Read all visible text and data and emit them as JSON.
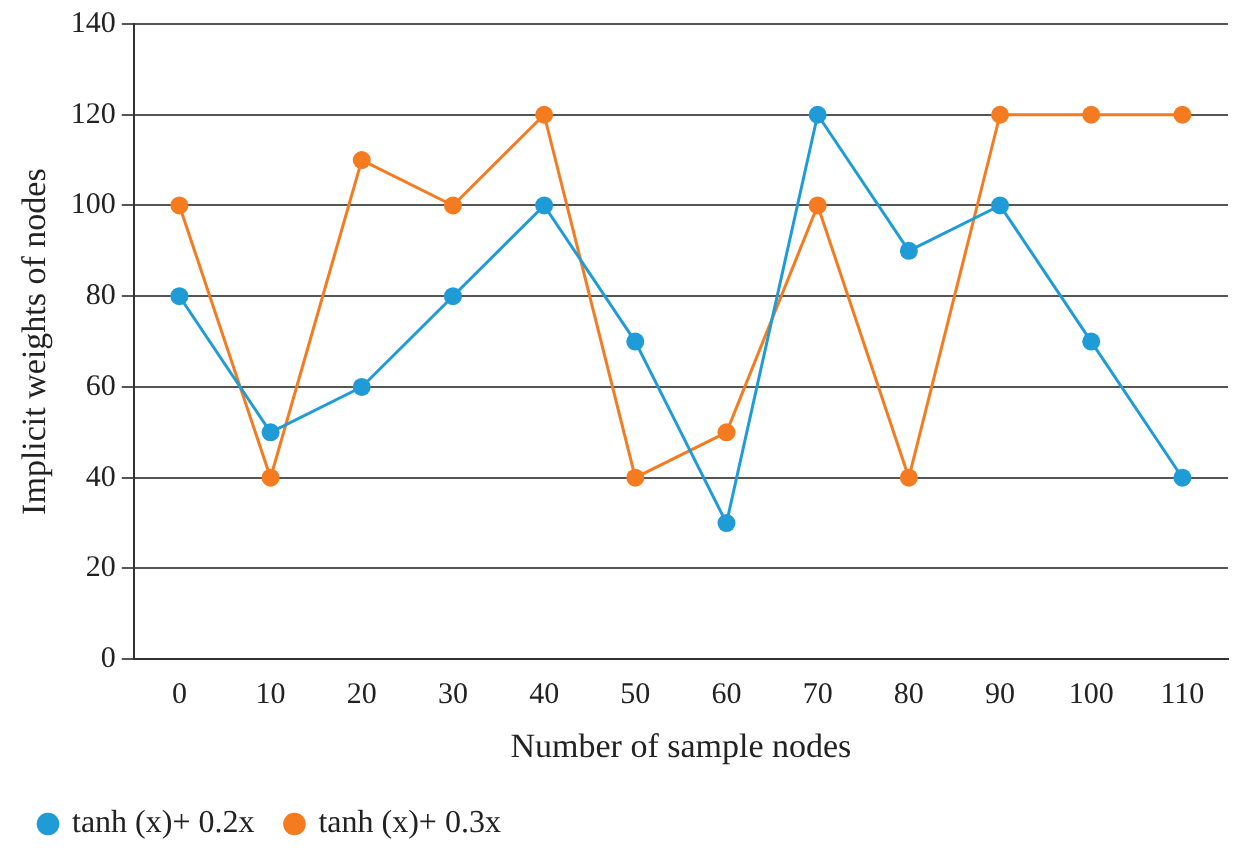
{
  "chart_data": {
    "type": "line",
    "xlabel": "Number of sample nodes",
    "ylabel": "Implicit weights of nodes",
    "categories": [
      "0",
      "10",
      "20",
      "30",
      "40",
      "50",
      "60",
      "70",
      "80",
      "90",
      "100",
      "110"
    ],
    "series": [
      {
        "name": "tanh (x)+ 0.2x",
        "color": "#1f9bd7",
        "values": [
          80,
          50,
          60,
          80,
          100,
          70,
          30,
          120,
          90,
          100,
          70,
          40
        ]
      },
      {
        "name": "tanh (x)+ 0.3x",
        "color": "#f47b20",
        "values": [
          100,
          40,
          110,
          100,
          120,
          40,
          50,
          100,
          40,
          120,
          120,
          120
        ]
      }
    ],
    "ylim": [
      0,
      140
    ],
    "yticks": [
      0,
      20,
      40,
      60,
      80,
      100,
      120,
      140
    ],
    "grid": "y",
    "legend": "bottom left",
    "marker": "circle",
    "line_style": "solid"
  }
}
